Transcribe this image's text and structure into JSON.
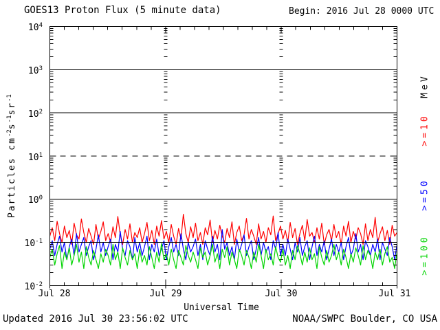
{
  "header": {
    "title": "GOES13 Proton Flux (5 minute data)",
    "begin_label": "Begin: 2016 Jul 28 0000 UTC"
  },
  "footer": {
    "updated": "Updated 2016 Jul 30 23:56:02 UTC",
    "credit": "NOAA/SWPC Boulder, CO USA"
  },
  "chart_data": {
    "type": "line",
    "title": "GOES13 Proton Flux (5 minute data)",
    "xlabel": "Universal Time",
    "ylabel_parts": {
      "prefix": "Particles cm",
      "sup1": "-2",
      "mid1": "s",
      "sup2": "-1",
      "mid2": "sr",
      "sup3": "-1"
    },
    "x_ticks": [
      "Jul 28",
      "Jul 29",
      "Jul 30",
      "Jul 31"
    ],
    "x_minor_tick_hours": 3,
    "y_ticks": [
      {
        "base": "10",
        "exp": "4"
      },
      {
        "base": "10",
        "exp": "3"
      },
      {
        "base": "10",
        "exp": "2"
      },
      {
        "base": "10",
        "exp": "1"
      },
      {
        "base": "10",
        "exp": "0"
      },
      {
        "base": "10",
        "exp": "-1"
      },
      {
        "base": "10",
        "exp": "-2"
      }
    ],
    "ylim_exp": [
      -2,
      4
    ],
    "log_scale": true,
    "gridlines": {
      "solid_exponents": [
        3,
        2,
        0,
        -1
      ],
      "dashed_exponents": [
        1
      ],
      "day_lines": [
        1,
        2
      ]
    },
    "legend_title": "MeV",
    "axis_color": "#000000",
    "background_color": "#ffffff",
    "cadence_minutes": 30,
    "series": [
      {
        "name": ">=10",
        "color": "#ff0000",
        "values": [
          0.14,
          0.22,
          0.11,
          0.31,
          0.16,
          0.1,
          0.24,
          0.13,
          0.19,
          0.09,
          0.28,
          0.15,
          0.12,
          0.35,
          0.17,
          0.1,
          0.21,
          0.14,
          0.09,
          0.26,
          0.12,
          0.18,
          0.3,
          0.11,
          0.16,
          0.1,
          0.23,
          0.13,
          0.4,
          0.15,
          0.09,
          0.2,
          0.12,
          0.27,
          0.1,
          0.17,
          0.13,
          0.22,
          0.1,
          0.16,
          0.29,
          0.11,
          0.19,
          0.09,
          0.24,
          0.14,
          0.32,
          0.12,
          0.18,
          0.1,
          0.26,
          0.14,
          0.09,
          0.21,
          0.12,
          0.45,
          0.16,
          0.1,
          0.23,
          0.13,
          0.28,
          0.11,
          0.17,
          0.09,
          0.22,
          0.15,
          0.33,
          0.1,
          0.19,
          0.12,
          0.25,
          0.14,
          0.1,
          0.21,
          0.13,
          0.3,
          0.09,
          0.17,
          0.24,
          0.11,
          0.15,
          0.36,
          0.12,
          0.2,
          0.14,
          0.09,
          0.27,
          0.12,
          0.18,
          0.1,
          0.22,
          0.15,
          0.41,
          0.11,
          0.16,
          0.24,
          0.12,
          0.19,
          0.1,
          0.29,
          0.13,
          0.21,
          0.09,
          0.16,
          0.25,
          0.11,
          0.34,
          0.14,
          0.17,
          0.1,
          0.22,
          0.12,
          0.28,
          0.09,
          0.15,
          0.2,
          0.11,
          0.26,
          0.13,
          0.18,
          0.09,
          0.24,
          0.14,
          0.31,
          0.1,
          0.18,
          0.12,
          0.22,
          0.16,
          0.09,
          0.27,
          0.11,
          0.2,
          0.13,
          0.38,
          0.1,
          0.16,
          0.23,
          0.11,
          0.19,
          0.09,
          0.25,
          0.14,
          0.17
        ]
      },
      {
        "name": ">=50",
        "color": "#0000ff",
        "values": [
          0.07,
          0.11,
          0.05,
          0.09,
          0.14,
          0.06,
          0.1,
          0.04,
          0.08,
          0.12,
          0.05,
          0.16,
          0.06,
          0.09,
          0.13,
          0.05,
          0.08,
          0.11,
          0.04,
          0.07,
          0.15,
          0.06,
          0.1,
          0.05,
          0.08,
          0.12,
          0.04,
          0.09,
          0.06,
          0.18,
          0.07,
          0.05,
          0.11,
          0.08,
          0.04,
          0.13,
          0.06,
          0.1,
          0.05,
          0.08,
          0.14,
          0.04,
          0.09,
          0.06,
          0.12,
          0.05,
          0.07,
          0.11,
          0.04,
          0.08,
          0.13,
          0.06,
          0.09,
          0.05,
          0.16,
          0.07,
          0.04,
          0.1,
          0.06,
          0.08,
          0.12,
          0.05,
          0.09,
          0.04,
          0.11,
          0.07,
          0.05,
          0.14,
          0.06,
          0.09,
          0.04,
          0.2,
          0.07,
          0.1,
          0.05,
          0.08,
          0.04,
          0.12,
          0.06,
          0.09,
          0.15,
          0.05,
          0.08,
          0.11,
          0.04,
          0.07,
          0.13,
          0.05,
          0.1,
          0.06,
          0.08,
          0.04,
          0.11,
          0.07,
          0.17,
          0.05,
          0.09,
          0.05,
          0.12,
          0.07,
          0.04,
          0.1,
          0.06,
          0.13,
          0.05,
          0.08,
          0.11,
          0.04,
          0.08,
          0.14,
          0.05,
          0.09,
          0.06,
          0.11,
          0.04,
          0.07,
          0.12,
          0.05,
          0.09,
          0.06,
          0.1,
          0.04,
          0.08,
          0.13,
          0.05,
          0.07,
          0.16,
          0.06,
          0.09,
          0.04,
          0.11,
          0.08,
          0.05,
          0.09,
          0.06,
          0.12,
          0.04,
          0.1,
          0.07,
          0.05,
          0.13,
          0.08,
          0.04,
          0.09
        ]
      },
      {
        "name": ">=100",
        "color": "#00d400",
        "values": [
          0.045,
          0.07,
          0.03,
          0.055,
          0.085,
          0.025,
          0.06,
          0.04,
          0.075,
          0.03,
          0.05,
          0.09,
          0.035,
          0.06,
          0.025,
          0.08,
          0.045,
          0.03,
          0.065,
          0.04,
          0.025,
          0.055,
          0.035,
          0.07,
          0.05,
          0.03,
          0.09,
          0.04,
          0.06,
          0.025,
          0.075,
          0.045,
          0.03,
          0.065,
          0.04,
          0.055,
          0.025,
          0.07,
          0.035,
          0.05,
          0.03,
          0.08,
          0.045,
          0.025,
          0.06,
          0.035,
          0.095,
          0.04,
          0.055,
          0.03,
          0.07,
          0.04,
          0.025,
          0.065,
          0.045,
          0.03,
          0.085,
          0.05,
          0.035,
          0.06,
          0.04,
          0.025,
          0.075,
          0.045,
          0.06,
          0.03,
          0.05,
          0.09,
          0.035,
          0.055,
          0.025,
          0.07,
          0.045,
          0.08,
          0.03,
          0.06,
          0.04,
          0.025,
          0.07,
          0.05,
          0.03,
          0.065,
          0.045,
          0.025,
          0.06,
          0.035,
          0.09,
          0.05,
          0.025,
          0.07,
          0.04,
          0.055,
          0.03,
          0.08,
          0.045,
          0.035,
          0.07,
          0.03,
          0.05,
          0.025,
          0.065,
          0.04,
          0.085,
          0.055,
          0.03,
          0.06,
          0.035,
          0.075,
          0.04,
          0.055,
          0.025,
          0.08,
          0.045,
          0.03,
          0.065,
          0.035,
          0.05,
          0.09,
          0.04,
          0.06,
          0.03,
          0.07,
          0.045,
          0.025,
          0.055,
          0.035,
          0.075,
          0.05,
          0.03,
          0.085,
          0.04,
          0.065,
          0.05,
          0.025,
          0.06,
          0.04,
          0.07,
          0.03,
          0.055,
          0.08,
          0.035,
          0.045,
          0.025,
          0.06
        ]
      }
    ]
  }
}
